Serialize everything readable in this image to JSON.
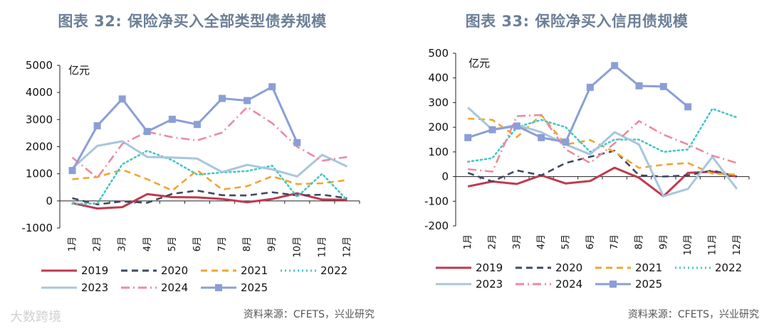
{
  "watermark": "大数跨境",
  "chart_data": [
    {
      "type": "line",
      "title": "图表 32: 保险净买入全部类型债券规模",
      "unit": "亿元",
      "ylim": [
        -1000,
        5000
      ],
      "yticks": [
        -1000,
        0,
        1000,
        2000,
        3000,
        4000,
        5000
      ],
      "categories": [
        "1月",
        "2月",
        "3月",
        "4月",
        "5月",
        "6月",
        "7月",
        "8月",
        "9月",
        "10月",
        "11月",
        "12月"
      ],
      "source": "资料来源：CFETS，兴业研究",
      "series": [
        {
          "name": "2019",
          "color": "#c0394f",
          "dash": "solid",
          "marker": "none",
          "values": [
            -80,
            -280,
            -230,
            250,
            140,
            130,
            70,
            -50,
            70,
            280,
            50,
            40
          ]
        },
        {
          "name": "2020",
          "color": "#3d4a63",
          "dash": "dash",
          "marker": "none",
          "values": [
            100,
            -130,
            -20,
            -70,
            260,
            380,
            210,
            200,
            320,
            200,
            230,
            100
          ]
        },
        {
          "name": "2021",
          "color": "#f0a530",
          "dash": "dash",
          "marker": "none",
          "values": [
            800,
            880,
            1150,
            800,
            380,
            1130,
            420,
            540,
            910,
            620,
            650,
            770
          ]
        },
        {
          "name": "2022",
          "color": "#45c6c6",
          "dash": "dot",
          "marker": "none",
          "values": [
            -100,
            -100,
            1350,
            1850,
            1500,
            970,
            1050,
            1100,
            1300,
            150,
            1000,
            30
          ]
        },
        {
          "name": "2023",
          "color": "#a8c6dc",
          "dash": "solid",
          "marker": "none",
          "values": [
            1200,
            2030,
            2200,
            1620,
            1600,
            1560,
            1060,
            1330,
            1160,
            900,
            1700,
            1270
          ]
        },
        {
          "name": "2024",
          "color": "#ec8aa0",
          "dash": "dashdot",
          "marker": "none",
          "values": [
            1600,
            850,
            2100,
            2550,
            2350,
            2230,
            2520,
            3460,
            2870,
            2000,
            1480,
            1620
          ]
        },
        {
          "name": "2025",
          "color": "#8b9fd6",
          "dash": "solid",
          "marker": "square",
          "values": [
            1120,
            2770,
            3760,
            2560,
            3010,
            2820,
            3780,
            3700,
            4210,
            2150,
            null,
            null
          ]
        }
      ]
    },
    {
      "type": "line",
      "title": "图表 33: 保险净买入信用债规模",
      "unit": "亿元",
      "ylim": [
        -200,
        500
      ],
      "yticks": [
        -200,
        -100,
        0,
        100,
        200,
        300,
        400,
        500
      ],
      "categories": [
        "1月",
        "2月",
        "3月",
        "4月",
        "5月",
        "6月",
        "7月",
        "8月",
        "9月",
        "10月",
        "11月",
        "12月"
      ],
      "source": "资料来源：CFETS，兴业研究",
      "series": [
        {
          "name": "2019",
          "color": "#c0394f",
          "dash": "solid",
          "marker": "none",
          "values": [
            -40,
            -20,
            -30,
            5,
            -28,
            -18,
            36,
            -5,
            -80,
            15,
            20,
            0
          ]
        },
        {
          "name": "2020",
          "color": "#3d4a63",
          "dash": "dash",
          "marker": "none",
          "values": [
            15,
            -20,
            25,
            5,
            55,
            80,
            105,
            5,
            0,
            5,
            25,
            0
          ]
        },
        {
          "name": "2021",
          "color": "#f0a530",
          "dash": "dash",
          "marker": "none",
          "values": [
            235,
            230,
            160,
            250,
            130,
            148,
            100,
            35,
            48,
            55,
            12,
            8
          ]
        },
        {
          "name": "2022",
          "color": "#45c6c6",
          "dash": "dot",
          "marker": "none",
          "values": [
            60,
            75,
            200,
            230,
            200,
            100,
            150,
            150,
            100,
            110,
            275,
            240
          ]
        },
        {
          "name": "2023",
          "color": "#a8c6dc",
          "dash": "solid",
          "marker": "none",
          "values": [
            280,
            190,
            210,
            180,
            130,
            90,
            180,
            130,
            -80,
            -50,
            80,
            -50
          ]
        },
        {
          "name": "2024",
          "color": "#ec8aa0",
          "dash": "dashdot",
          "marker": "none",
          "values": [
            30,
            20,
            245,
            250,
            110,
            55,
            135,
            225,
            170,
            130,
            85,
            55
          ]
        },
        {
          "name": "2025",
          "color": "#8b9fd6",
          "dash": "solid",
          "marker": "square",
          "values": [
            158,
            190,
            205,
            158,
            140,
            362,
            450,
            368,
            365,
            283,
            null,
            null
          ]
        }
      ]
    }
  ]
}
